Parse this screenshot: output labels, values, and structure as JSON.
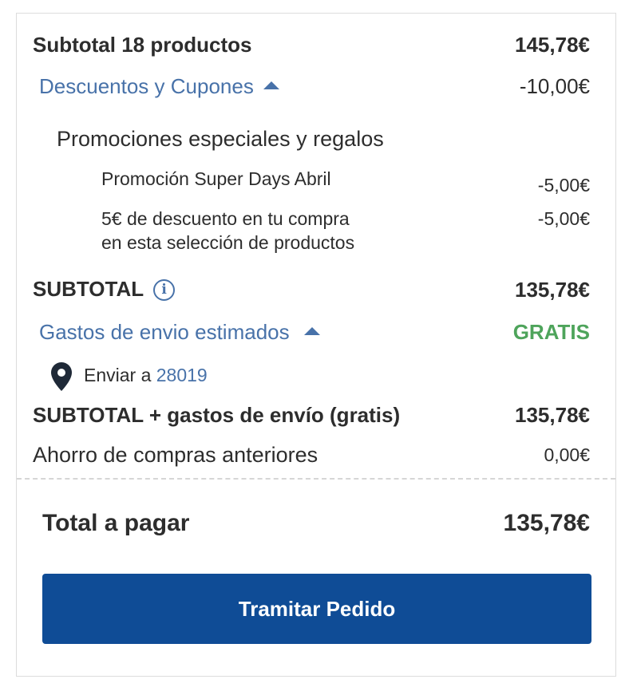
{
  "summary": {
    "subtotal_label": "Subtotal 18 productos",
    "subtotal_value": "145,78€",
    "discounts_label": "Descuentos y Cupones",
    "discounts_value": "-10,00€",
    "promotions_header": "Promociones especiales y regalos",
    "promotions": [
      {
        "label": "Promoción Super Days Abril",
        "value": "-5,00€"
      },
      {
        "label_line1": "5€ de descuento en tu compra",
        "label_line2": "en esta selección de productos",
        "value": "-5,00€"
      }
    ],
    "subtotal2_label": "SUBTOTAL",
    "subtotal2_value": "135,78€",
    "shipping_label": "Gastos de envio estimados",
    "shipping_value": "GRATIS",
    "ship_to_prefix": "Enviar a",
    "ship_to_zip": "28019",
    "subtotal_shipping_label": "SUBTOTAL + gastos de envío (gratis)",
    "subtotal_shipping_value": "135,78€",
    "savings_label": "Ahorro de compras anteriores",
    "savings_value": "0,00€",
    "total_label": "Total a pagar",
    "total_value": "135,78€"
  },
  "checkout": {
    "button_label": "Tramitar Pedido"
  },
  "icons": {
    "info": "info-icon",
    "pin": "location-pin-icon",
    "caret": "caret-up-icon"
  },
  "colors": {
    "primary_button": "#0f4c96",
    "link_blue": "#4872a9",
    "free_green": "#4ea45b"
  }
}
